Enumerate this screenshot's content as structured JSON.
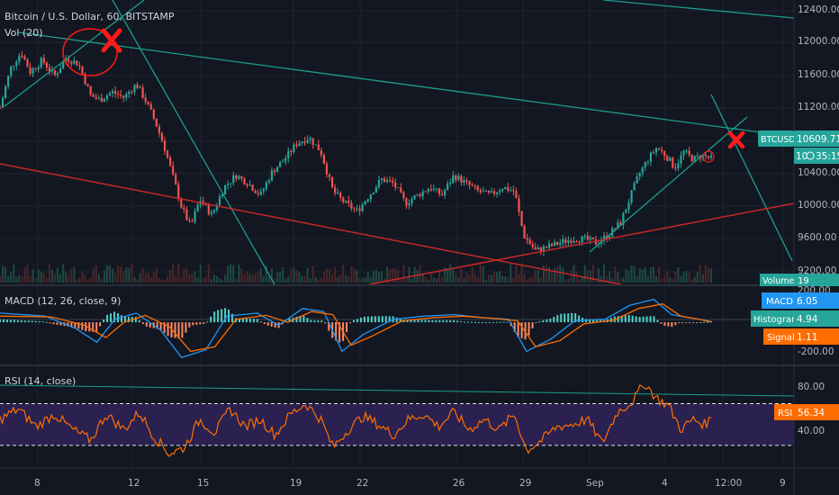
{
  "title": "Bitcoin / U.S. Dollar, 60, BITSTAMP",
  "colors": {
    "background": "#131722",
    "grid": "#1e2330",
    "axis_text": "#b2b5be",
    "up": "#26a69a",
    "down": "#ef5350",
    "teal_line": "#1c9d8c",
    "red_line": "#c62828",
    "macd_line": "#2196f3",
    "signal_line": "#ff6d00",
    "rsi_line": "#ff6d00",
    "rsi_band": "#2a2150",
    "marker": "#ff1a1a"
  },
  "x_axis": {
    "ticks": [
      "8",
      "12",
      "15",
      "19",
      "22",
      "26",
      "29",
      "Sep",
      "4",
      "12:00",
      "9"
    ]
  },
  "price_panel": {
    "indicator_label": "Vol (20)",
    "y_ticks": [
      "12400.00",
      "12000.00",
      "11600.00",
      "11200.00",
      "10400.00",
      "10000.00",
      "9600.00",
      "9200.00"
    ],
    "last_price_label": "BTCUSD",
    "last_price": "10609.71",
    "countdown": "35:15",
    "countdown_prefix": "10",
    "volume_label": "Volume",
    "volume_value": "19"
  },
  "macd_panel": {
    "label": "MACD (12, 26, close, 9)",
    "y_ticks": [
      "200.00",
      "-200.00"
    ],
    "tags": [
      {
        "name": "MACD",
        "value": "6.05"
      },
      {
        "name": "Histogram",
        "value": "4.94"
      },
      {
        "name": "Signal",
        "value": "1.11"
      }
    ]
  },
  "rsi_panel": {
    "label": "RSI (14, close)",
    "y_ticks": [
      "80.00",
      "40.00"
    ],
    "tag_name": "RSI",
    "tag_value": "56.34"
  },
  "chart_data": {
    "type": "line",
    "title": "Bitcoin / U.S. Dollar, 60, BITSTAMP",
    "x_range": [
      "Aug 7",
      "Sep 9"
    ],
    "price": {
      "ylim": [
        9050,
        12550
      ],
      "close_path": [
        {
          "x": 0.0,
          "y": 11250
        },
        {
          "x": 0.35,
          "y": 11750
        },
        {
          "x": 0.7,
          "y": 11950
        },
        {
          "x": 1.0,
          "y": 11700
        },
        {
          "x": 1.4,
          "y": 11850
        },
        {
          "x": 1.8,
          "y": 11650
        },
        {
          "x": 2.2,
          "y": 11880
        },
        {
          "x": 2.6,
          "y": 11800
        },
        {
          "x": 3.0,
          "y": 11400
        },
        {
          "x": 3.3,
          "y": 11350
        },
        {
          "x": 3.7,
          "y": 11450
        },
        {
          "x": 4.1,
          "y": 11380
        },
        {
          "x": 4.5,
          "y": 11550
        },
        {
          "x": 4.8,
          "y": 11350
        },
        {
          "x": 5.1,
          "y": 11100
        },
        {
          "x": 5.4,
          "y": 10800
        },
        {
          "x": 5.7,
          "y": 10400
        },
        {
          "x": 6.0,
          "y": 10000
        },
        {
          "x": 6.3,
          "y": 9750
        },
        {
          "x": 6.6,
          "y": 10100
        },
        {
          "x": 7.0,
          "y": 9900
        },
        {
          "x": 7.4,
          "y": 10250
        },
        {
          "x": 7.8,
          "y": 10400
        },
        {
          "x": 8.2,
          "y": 10300
        },
        {
          "x": 8.6,
          "y": 10150
        },
        {
          "x": 9.0,
          "y": 10450
        },
        {
          "x": 9.4,
          "y": 10600
        },
        {
          "x": 9.8,
          "y": 10800
        },
        {
          "x": 10.2,
          "y": 10880
        },
        {
          "x": 10.6,
          "y": 10700
        },
        {
          "x": 11.0,
          "y": 10200
        },
        {
          "x": 11.4,
          "y": 10050
        },
        {
          "x": 11.8,
          "y": 9950
        },
        {
          "x": 12.2,
          "y": 10150
        },
        {
          "x": 12.6,
          "y": 10350
        },
        {
          "x": 13.0,
          "y": 10300
        },
        {
          "x": 13.4,
          "y": 10050
        },
        {
          "x": 13.8,
          "y": 10150
        },
        {
          "x": 14.2,
          "y": 10250
        },
        {
          "x": 14.6,
          "y": 10150
        },
        {
          "x": 15.0,
          "y": 10400
        },
        {
          "x": 15.4,
          "y": 10300
        },
        {
          "x": 15.8,
          "y": 10200
        },
        {
          "x": 16.2,
          "y": 10150
        },
        {
          "x": 16.6,
          "y": 10250
        },
        {
          "x": 17.0,
          "y": 10200
        },
        {
          "x": 17.3,
          "y": 9650
        },
        {
          "x": 17.7,
          "y": 9450
        },
        {
          "x": 18.1,
          "y": 9500
        },
        {
          "x": 18.5,
          "y": 9550
        },
        {
          "x": 18.9,
          "y": 9600
        },
        {
          "x": 19.3,
          "y": 9600
        },
        {
          "x": 19.7,
          "y": 9550
        },
        {
          "x": 20.1,
          "y": 9650
        },
        {
          "x": 20.5,
          "y": 9800
        },
        {
          "x": 20.8,
          "y": 10100
        },
        {
          "x": 21.1,
          "y": 10400
        },
        {
          "x": 21.4,
          "y": 10600
        },
        {
          "x": 21.7,
          "y": 10750
        },
        {
          "x": 22.0,
          "y": 10650
        },
        {
          "x": 22.3,
          "y": 10500
        },
        {
          "x": 22.6,
          "y": 10700
        },
        {
          "x": 22.9,
          "y": 10600
        },
        {
          "x": 23.2,
          "y": 10650
        },
        {
          "x": 23.5,
          "y": 10610
        }
      ]
    },
    "macd": {
      "ylim": [
        -270,
        230
      ],
      "macd_path": [
        {
          "x": 0.0,
          "y": 60
        },
        {
          "x": 1.5,
          "y": 40
        },
        {
          "x": 2.5,
          "y": -40
        },
        {
          "x": 3.2,
          "y": -130
        },
        {
          "x": 3.8,
          "y": 20
        },
        {
          "x": 4.5,
          "y": 60
        },
        {
          "x": 5.3,
          "y": -50
        },
        {
          "x": 6.0,
          "y": -230
        },
        {
          "x": 6.8,
          "y": -180
        },
        {
          "x": 7.5,
          "y": 40
        },
        {
          "x": 8.5,
          "y": 60
        },
        {
          "x": 9.2,
          "y": -20
        },
        {
          "x": 10.0,
          "y": 90
        },
        {
          "x": 10.7,
          "y": 70
        },
        {
          "x": 11.3,
          "y": -190
        },
        {
          "x": 12.0,
          "y": -80
        },
        {
          "x": 13.0,
          "y": 20
        },
        {
          "x": 14.0,
          "y": 40
        },
        {
          "x": 15.0,
          "y": 50
        },
        {
          "x": 16.0,
          "y": 30
        },
        {
          "x": 16.8,
          "y": 20
        },
        {
          "x": 17.4,
          "y": -190
        },
        {
          "x": 18.2,
          "y": -110
        },
        {
          "x": 19.0,
          "y": 10
        },
        {
          "x": 20.0,
          "y": 20
        },
        {
          "x": 20.8,
          "y": 110
        },
        {
          "x": 21.6,
          "y": 150
        },
        {
          "x": 22.2,
          "y": 50
        },
        {
          "x": 22.8,
          "y": 30
        },
        {
          "x": 23.5,
          "y": 6
        }
      ],
      "signal_path": [
        {
          "x": 0.0,
          "y": 40
        },
        {
          "x": 1.7,
          "y": 35
        },
        {
          "x": 2.8,
          "y": -20
        },
        {
          "x": 3.5,
          "y": -100
        },
        {
          "x": 4.1,
          "y": 0
        },
        {
          "x": 4.8,
          "y": 45
        },
        {
          "x": 5.6,
          "y": -30
        },
        {
          "x": 6.3,
          "y": -190
        },
        {
          "x": 7.1,
          "y": -160
        },
        {
          "x": 7.8,
          "y": 20
        },
        {
          "x": 8.8,
          "y": 45
        },
        {
          "x": 9.5,
          "y": 0
        },
        {
          "x": 10.3,
          "y": 70
        },
        {
          "x": 11.0,
          "y": 50
        },
        {
          "x": 11.6,
          "y": -150
        },
        {
          "x": 12.3,
          "y": -90
        },
        {
          "x": 13.3,
          "y": 10
        },
        {
          "x": 14.3,
          "y": 30
        },
        {
          "x": 15.3,
          "y": 40
        },
        {
          "x": 16.3,
          "y": 25
        },
        {
          "x": 17.1,
          "y": 10
        },
        {
          "x": 17.7,
          "y": -160
        },
        {
          "x": 18.5,
          "y": -120
        },
        {
          "x": 19.3,
          "y": -10
        },
        {
          "x": 20.3,
          "y": 15
        },
        {
          "x": 21.1,
          "y": 90
        },
        {
          "x": 21.9,
          "y": 120
        },
        {
          "x": 22.5,
          "y": 40
        },
        {
          "x": 23.1,
          "y": 20
        },
        {
          "x": 23.5,
          "y": 1
        }
      ]
    },
    "rsi": {
      "ylim": [
        10,
        105
      ],
      "upper_band": 70,
      "lower_band": 30,
      "rsi_path": [
        {
          "x": 0.0,
          "y": 55
        },
        {
          "x": 0.6,
          "y": 65
        },
        {
          "x": 1.2,
          "y": 48
        },
        {
          "x": 1.8,
          "y": 60
        },
        {
          "x": 2.4,
          "y": 45
        },
        {
          "x": 3.0,
          "y": 35
        },
        {
          "x": 3.5,
          "y": 60
        },
        {
          "x": 4.1,
          "y": 45
        },
        {
          "x": 4.6,
          "y": 62
        },
        {
          "x": 5.1,
          "y": 38
        },
        {
          "x": 5.6,
          "y": 22
        },
        {
          "x": 6.1,
          "y": 28
        },
        {
          "x": 6.6,
          "y": 55
        },
        {
          "x": 7.1,
          "y": 42
        },
        {
          "x": 7.6,
          "y": 65
        },
        {
          "x": 8.1,
          "y": 48
        },
        {
          "x": 8.6,
          "y": 55
        },
        {
          "x": 9.1,
          "y": 40
        },
        {
          "x": 9.6,
          "y": 60
        },
        {
          "x": 10.1,
          "y": 70
        },
        {
          "x": 10.6,
          "y": 55
        },
        {
          "x": 11.0,
          "y": 28
        },
        {
          "x": 11.5,
          "y": 45
        },
        {
          "x": 12.0,
          "y": 58
        },
        {
          "x": 12.5,
          "y": 50
        },
        {
          "x": 13.0,
          "y": 40
        },
        {
          "x": 13.5,
          "y": 55
        },
        {
          "x": 14.0,
          "y": 60
        },
        {
          "x": 14.5,
          "y": 48
        },
        {
          "x": 15.0,
          "y": 62
        },
        {
          "x": 15.5,
          "y": 45
        },
        {
          "x": 16.0,
          "y": 55
        },
        {
          "x": 16.5,
          "y": 45
        },
        {
          "x": 17.0,
          "y": 60
        },
        {
          "x": 17.4,
          "y": 25
        },
        {
          "x": 17.9,
          "y": 35
        },
        {
          "x": 18.4,
          "y": 48
        },
        {
          "x": 18.9,
          "y": 50
        },
        {
          "x": 19.4,
          "y": 55
        },
        {
          "x": 19.9,
          "y": 32
        },
        {
          "x": 20.4,
          "y": 62
        },
        {
          "x": 20.9,
          "y": 72
        },
        {
          "x": 21.3,
          "y": 90
        },
        {
          "x": 21.7,
          "y": 75
        },
        {
          "x": 22.1,
          "y": 68
        },
        {
          "x": 22.5,
          "y": 45
        },
        {
          "x": 22.9,
          "y": 55
        },
        {
          "x": 23.3,
          "y": 50
        },
        {
          "x": 23.5,
          "y": 56
        }
      ]
    }
  }
}
